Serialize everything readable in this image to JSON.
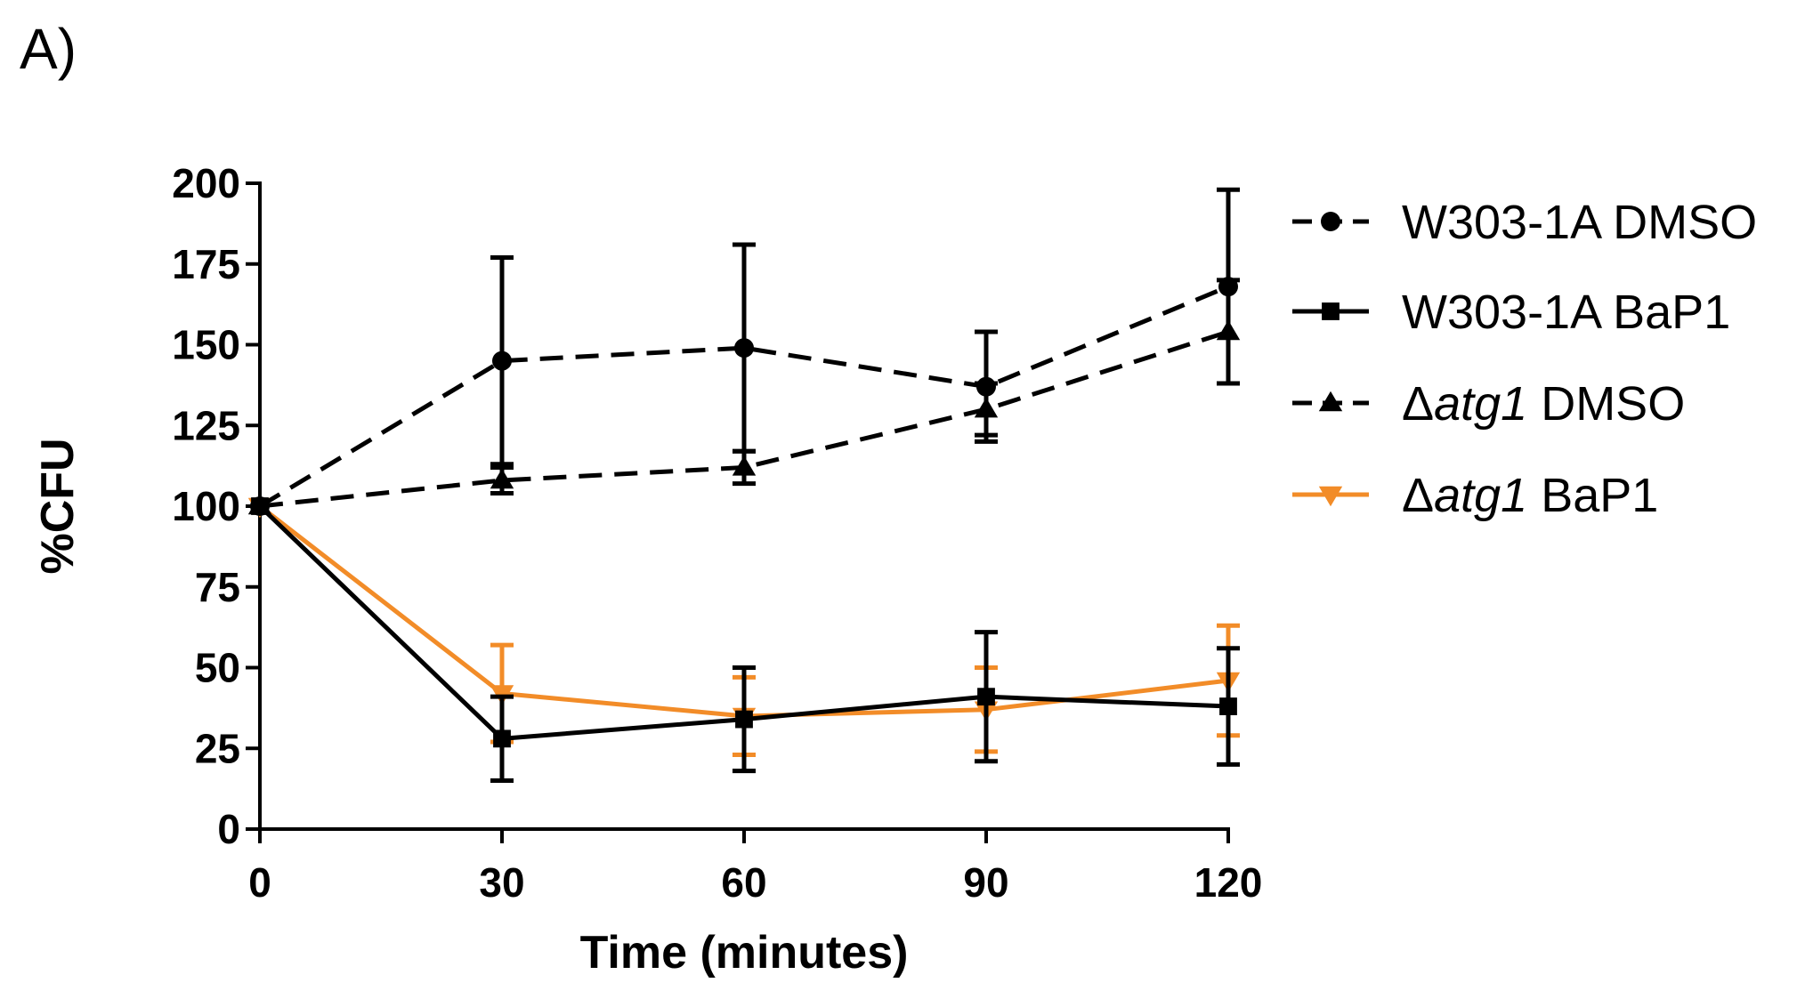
{
  "panel_label": "A)",
  "chart_data": {
    "type": "line",
    "title": "",
    "xlabel": "Time (minutes)",
    "ylabel": "%CFU",
    "x": [
      0,
      30,
      60,
      90,
      120
    ],
    "xlim": [
      0,
      120
    ],
    "ylim": [
      0,
      200
    ],
    "xticks": [
      0,
      30,
      60,
      90,
      120
    ],
    "yticks": [
      0,
      25,
      50,
      75,
      100,
      125,
      150,
      175,
      200
    ],
    "legend_position": "right",
    "series": [
      {
        "name": "W303-1A DMSO",
        "legend_prefix": "",
        "legend_italic": "",
        "legend_suffix": "W303-1A DMSO",
        "color": "#000000",
        "dashed": true,
        "marker": "circle",
        "values": [
          100,
          145,
          149,
          137,
          168
        ],
        "errors": [
          0,
          32,
          32,
          17,
          30
        ]
      },
      {
        "name": "W303-1A BaP1",
        "legend_prefix": "",
        "legend_italic": "",
        "legend_suffix": "W303-1A BaP1",
        "color": "#000000",
        "dashed": false,
        "marker": "square",
        "values": [
          100,
          28,
          34,
          41,
          38
        ],
        "errors": [
          0,
          13,
          16,
          20,
          18
        ]
      },
      {
        "name": "Δatg1 DMSO",
        "legend_prefix": "Δ",
        "legend_italic": "atg1",
        "legend_suffix": " DMSO",
        "color": "#000000",
        "dashed": true,
        "marker": "triangle-up",
        "values": [
          100,
          108,
          112,
          130,
          154
        ],
        "errors": [
          0,
          4,
          5,
          8,
          16
        ]
      },
      {
        "name": "Δatg1 BaP1",
        "legend_prefix": "Δ",
        "legend_italic": "atg1",
        "legend_suffix": " BaP1",
        "color": "#F28C28",
        "dashed": false,
        "marker": "triangle-down",
        "values": [
          100,
          42,
          35,
          37,
          46
        ],
        "errors": [
          0,
          15,
          12,
          13,
          17
        ]
      }
    ]
  }
}
